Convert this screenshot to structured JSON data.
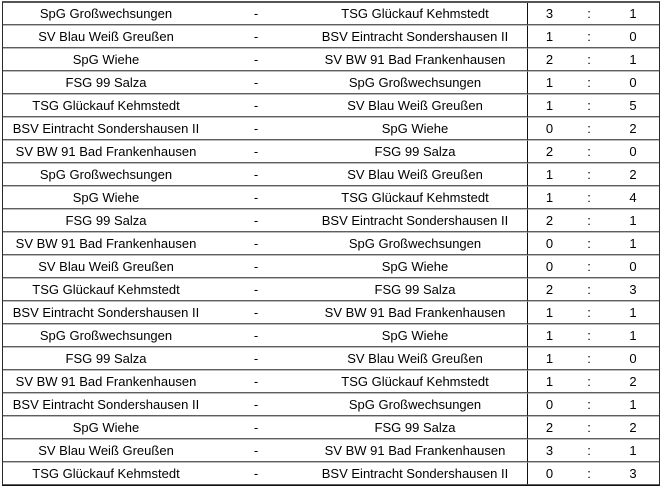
{
  "table": {
    "separator": "-",
    "score_separator": ":",
    "rows": [
      {
        "home": "SpG Großwechsungen",
        "away": "TSG Glückauf Kehmstedt",
        "home_score": 3,
        "away_score": 1
      },
      {
        "home": "SV Blau Weiß Greußen",
        "away": "BSV Eintracht Sondershausen II",
        "home_score": 1,
        "away_score": 0
      },
      {
        "home": "SpG Wiehe",
        "away": "SV BW 91 Bad Frankenhausen",
        "home_score": 2,
        "away_score": 1
      },
      {
        "home": "FSG 99 Salza",
        "away": "SpG Großwechsungen",
        "home_score": 1,
        "away_score": 0
      },
      {
        "home": "TSG Glückauf Kehmstedt",
        "away": "SV Blau Weiß Greußen",
        "home_score": 1,
        "away_score": 5
      },
      {
        "home": "BSV Eintracht Sondershausen II",
        "away": "SpG Wiehe",
        "home_score": 0,
        "away_score": 2
      },
      {
        "home": "SV BW 91 Bad Frankenhausen",
        "away": "FSG 99 Salza",
        "home_score": 2,
        "away_score": 0
      },
      {
        "home": "SpG Großwechsungen",
        "away": "SV Blau Weiß Greußen",
        "home_score": 1,
        "away_score": 2
      },
      {
        "home": "SpG Wiehe",
        "away": "TSG Glückauf Kehmstedt",
        "home_score": 1,
        "away_score": 4
      },
      {
        "home": "FSG 99 Salza",
        "away": "BSV Eintracht Sondershausen II",
        "home_score": 2,
        "away_score": 1
      },
      {
        "home": "SV BW 91 Bad Frankenhausen",
        "away": "SpG Großwechsungen",
        "home_score": 0,
        "away_score": 1
      },
      {
        "home": "SV Blau Weiß Greußen",
        "away": "SpG Wiehe",
        "home_score": 0,
        "away_score": 0
      },
      {
        "home": "TSG Glückauf Kehmstedt",
        "away": "FSG 99 Salza",
        "home_score": 2,
        "away_score": 3
      },
      {
        "home": "BSV Eintracht Sondershausen II",
        "away": "SV BW 91 Bad Frankenhausen",
        "home_score": 1,
        "away_score": 1
      },
      {
        "home": "SpG Großwechsungen",
        "away": "SpG Wiehe",
        "home_score": 1,
        "away_score": 1
      },
      {
        "home": "FSG 99 Salza",
        "away": "SV Blau Weiß Greußen",
        "home_score": 1,
        "away_score": 0
      },
      {
        "home": "SV BW 91 Bad Frankenhausen",
        "away": "TSG Glückauf Kehmstedt",
        "home_score": 1,
        "away_score": 2
      },
      {
        "home": "BSV Eintracht Sondershausen II",
        "away": "SpG Großwechsungen",
        "home_score": 0,
        "away_score": 1
      },
      {
        "home": "SpG Wiehe",
        "away": "FSG 99 Salza",
        "home_score": 2,
        "away_score": 2
      },
      {
        "home": "SV Blau Weiß Greußen",
        "away": "SV BW 91 Bad Frankenhausen",
        "home_score": 3,
        "away_score": 1
      },
      {
        "home": "TSG Glückauf Kehmstedt",
        "away": "BSV Eintracht Sondershausen II",
        "home_score": 0,
        "away_score": 3
      }
    ]
  },
  "colors": {
    "outer_border": "#2a2a2a",
    "score_divider": "#111111",
    "row_separator_dark": "#5e5e5e",
    "row_separator_light": "#bcbcbc",
    "background": "#ffffff",
    "text": "#000000"
  }
}
